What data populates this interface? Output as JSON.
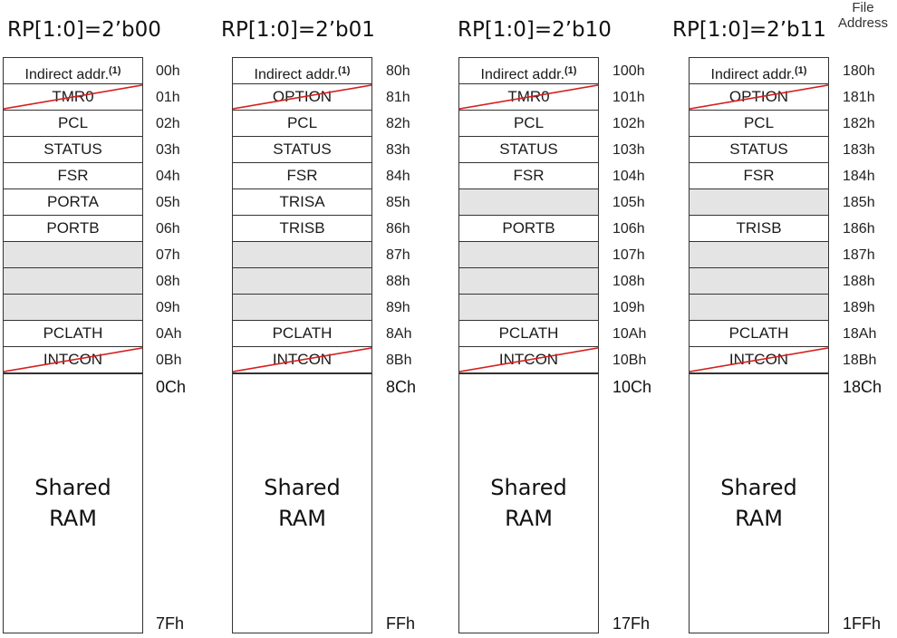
{
  "header": {
    "file_address": [
      "File",
      "Address"
    ]
  },
  "shared_label": [
    "Shared",
    "RAM"
  ],
  "indirect_footnote": "(1)",
  "banks": [
    {
      "title": "RP[1:0]=2’b00",
      "registers": [
        {
          "label": "Indirect addr.",
          "addr": "00h",
          "indirect": true
        },
        {
          "label": "TMR0",
          "addr": "01h",
          "strike": true
        },
        {
          "label": "PCL",
          "addr": "02h"
        },
        {
          "label": "STATUS",
          "addr": "03h"
        },
        {
          "label": "FSR",
          "addr": "04h"
        },
        {
          "label": "PORTA",
          "addr": "05h"
        },
        {
          "label": "PORTB",
          "addr": "06h"
        },
        {
          "label": "",
          "addr": "07h"
        },
        {
          "label": "",
          "addr": "08h"
        },
        {
          "label": "",
          "addr": "09h"
        },
        {
          "label": "PCLATH",
          "addr": "0Ah"
        },
        {
          "label": "INTCON",
          "addr": "0Bh",
          "strike": true
        }
      ],
      "shared_start": "0Ch",
      "shared_end": "7Fh"
    },
    {
      "title": "RP[1:0]=2’b01",
      "registers": [
        {
          "label": "Indirect addr.",
          "addr": "80h",
          "indirect": true
        },
        {
          "label": "OPTION",
          "addr": "81h",
          "strike": true
        },
        {
          "label": "PCL",
          "addr": "82h"
        },
        {
          "label": "STATUS",
          "addr": "83h"
        },
        {
          "label": "FSR",
          "addr": "84h"
        },
        {
          "label": "TRISA",
          "addr": "85h"
        },
        {
          "label": "TRISB",
          "addr": "86h"
        },
        {
          "label": "",
          "addr": "87h"
        },
        {
          "label": "",
          "addr": "88h"
        },
        {
          "label": "",
          "addr": "89h"
        },
        {
          "label": "PCLATH",
          "addr": "8Ah"
        },
        {
          "label": "INTCON",
          "addr": "8Bh",
          "strike": true
        }
      ],
      "shared_start": "8Ch",
      "shared_end": "FFh"
    },
    {
      "title": "RP[1:0]=2’b10",
      "registers": [
        {
          "label": "Indirect addr.",
          "addr": "100h",
          "indirect": true
        },
        {
          "label": "TMR0",
          "addr": "101h",
          "strike": true
        },
        {
          "label": "PCL",
          "addr": "102h"
        },
        {
          "label": "STATUS",
          "addr": "103h"
        },
        {
          "label": "FSR",
          "addr": "104h"
        },
        {
          "label": "",
          "addr": "105h"
        },
        {
          "label": "PORTB",
          "addr": "106h"
        },
        {
          "label": "",
          "addr": "107h"
        },
        {
          "label": "",
          "addr": "108h"
        },
        {
          "label": "",
          "addr": "109h"
        },
        {
          "label": "PCLATH",
          "addr": "10Ah"
        },
        {
          "label": "INTCON",
          "addr": "10Bh",
          "strike": true
        }
      ],
      "shared_start": "10Ch",
      "shared_end": "17Fh"
    },
    {
      "title": "RP[1:0]=2’b11",
      "registers": [
        {
          "label": "Indirect addr.",
          "addr": "180h",
          "indirect": true
        },
        {
          "label": "OPTION",
          "addr": "181h",
          "strike": true
        },
        {
          "label": "PCL",
          "addr": "182h"
        },
        {
          "label": "STATUS",
          "addr": "183h"
        },
        {
          "label": "FSR",
          "addr": "184h"
        },
        {
          "label": "",
          "addr": "185h"
        },
        {
          "label": "TRISB",
          "addr": "186h"
        },
        {
          "label": "",
          "addr": "187h"
        },
        {
          "label": "",
          "addr": "188h"
        },
        {
          "label": "",
          "addr": "189h"
        },
        {
          "label": "PCLATH",
          "addr": "18Ah"
        },
        {
          "label": "INTCON",
          "addr": "18Bh",
          "strike": true
        }
      ],
      "shared_start": "18Ch",
      "shared_end": "1FFh"
    }
  ],
  "colors": {
    "strike": "#d42020",
    "empty_cell": "#e4e4e4",
    "border": "#333333"
  }
}
